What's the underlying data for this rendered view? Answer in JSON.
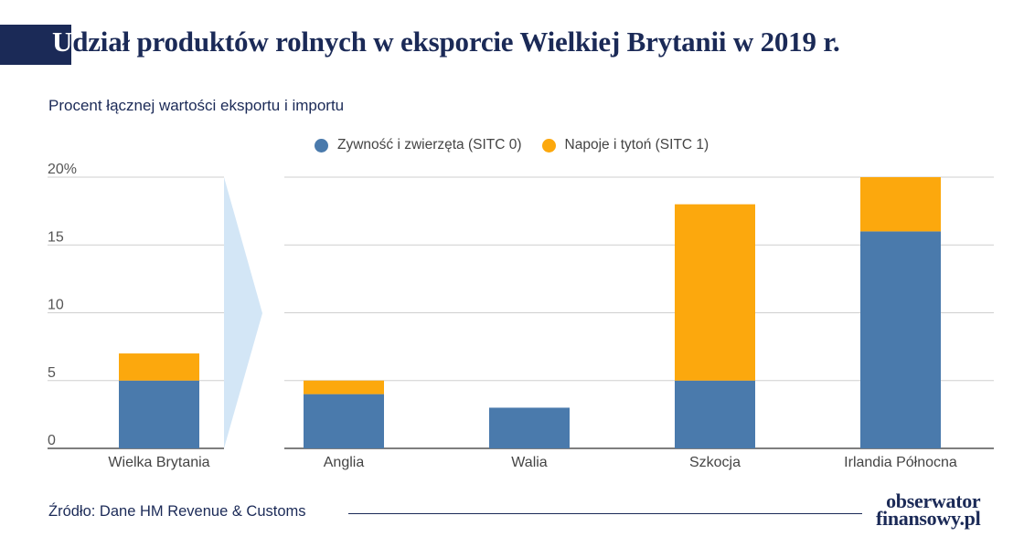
{
  "title": {
    "first_letter": "U",
    "rest": "dział produktów rolnych w eksporcie Wielkiej Brytanii w 2019 r."
  },
  "subtitle": "Procent łącznej wartości eksportu i importu",
  "source": "Źródło: Dane HM Revenue & Customs",
  "logo": {
    "line1": "obserwator",
    "line2": "finansowy.pl"
  },
  "colors": {
    "sitc0": "#4a7aac",
    "sitc1": "#fca80d",
    "arrow": "#d3e6f6",
    "grid": "#cfcfcf",
    "navy": "#1b2a57"
  },
  "chart_data": {
    "type": "bar",
    "stacked": true,
    "ylim": [
      0,
      20
    ],
    "yticks": [
      "0",
      "5",
      "10",
      "15",
      "20%"
    ],
    "grid": true,
    "legend_position": "top",
    "categories": [
      "Wielka Brytania",
      "Anglia",
      "Walia",
      "Szkocja",
      "Irlandia Północna"
    ],
    "series": [
      {
        "name": "Żywność i zwierzęta (SITC 0)",
        "legend_label": "Zywność i zwierzęta (SITC 0)",
        "values": [
          5,
          4,
          3,
          5,
          16
        ]
      },
      {
        "name": "Napoje i tytoń (SITC 1)",
        "legend_label": "Napoje i tytoń (SITC 1)",
        "values": [
          2,
          1,
          0,
          13,
          4
        ]
      }
    ]
  }
}
